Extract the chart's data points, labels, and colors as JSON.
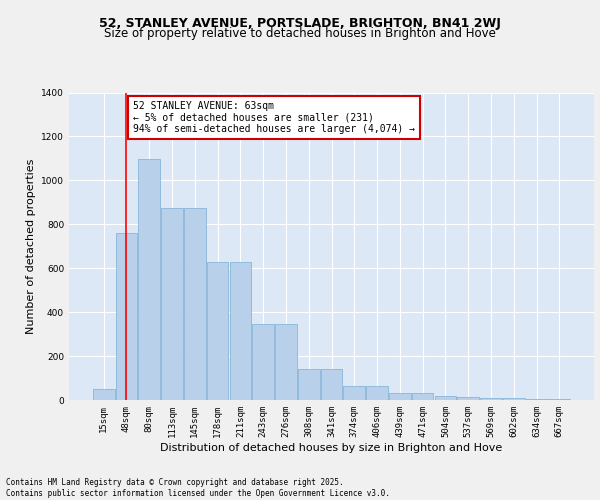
{
  "title_line1": "52, STANLEY AVENUE, PORTSLADE, BRIGHTON, BN41 2WJ",
  "title_line2": "Size of property relative to detached houses in Brighton and Hove",
  "xlabel": "Distribution of detached houses by size in Brighton and Hove",
  "ylabel": "Number of detached properties",
  "categories": [
    "15sqm",
    "48sqm",
    "80sqm",
    "113sqm",
    "145sqm",
    "178sqm",
    "211sqm",
    "243sqm",
    "276sqm",
    "308sqm",
    "341sqm",
    "374sqm",
    "406sqm",
    "439sqm",
    "471sqm",
    "504sqm",
    "537sqm",
    "569sqm",
    "602sqm",
    "634sqm",
    "667sqm"
  ],
  "bar_values": [
    50,
    760,
    1095,
    875,
    875,
    630,
    630,
    345,
    345,
    140,
    140,
    65,
    65,
    30,
    30,
    20,
    15,
    10,
    10,
    5,
    5
  ],
  "bar_color": "#b8d0ea",
  "bar_edge_color": "#7aaed4",
  "red_line_x": 0.97,
  "annotation_text": "52 STANLEY AVENUE: 63sqm\n← 5% of detached houses are smaller (231)\n94% of semi-detached houses are larger (4,074) →",
  "annotation_box_color": "#ffffff",
  "annotation_box_edge": "#cc0000",
  "ylim": [
    0,
    1400
  ],
  "yticks": [
    0,
    200,
    400,
    600,
    800,
    1000,
    1200,
    1400
  ],
  "background_color": "#dce8f5",
  "grid_color": "#ffffff",
  "footer_text": "Contains HM Land Registry data © Crown copyright and database right 2025.\nContains public sector information licensed under the Open Government Licence v3.0.",
  "title_fontsize": 9,
  "subtitle_fontsize": 8.5,
  "axis_label_fontsize": 8,
  "tick_fontsize": 6.5,
  "annotation_fontsize": 7
}
